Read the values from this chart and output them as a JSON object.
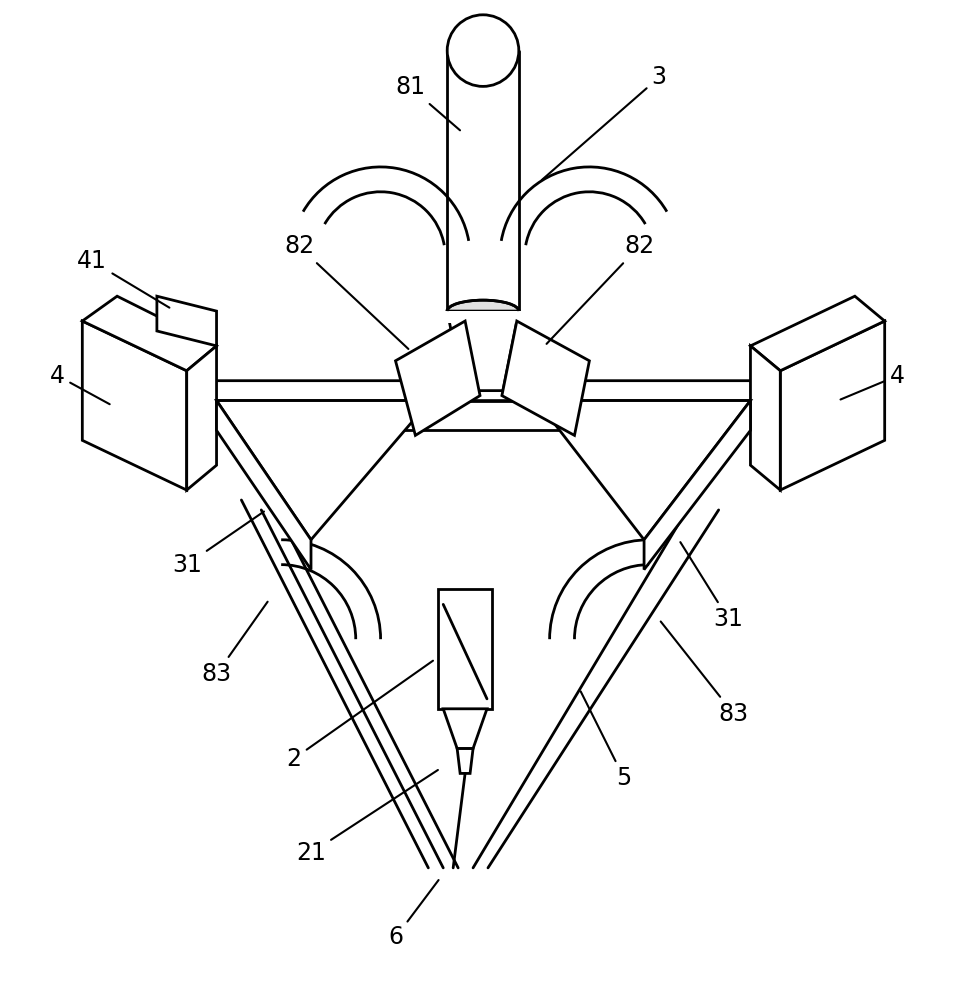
{
  "background_color": "#ffffff",
  "line_color": "#000000",
  "figsize": [
    9.67,
    10.0
  ],
  "dpi": 100,
  "lw": 2.0
}
